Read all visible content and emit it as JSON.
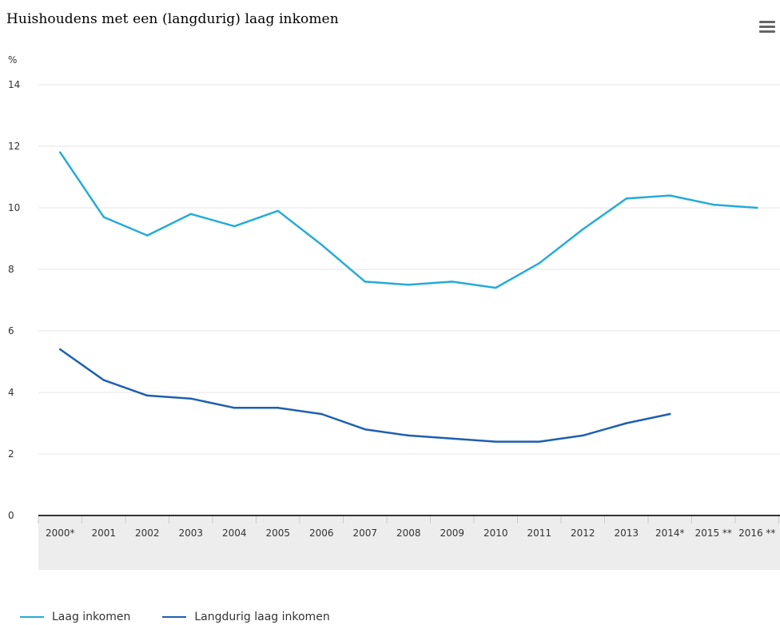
{
  "chart_data": {
    "type": "line",
    "title": "Huishoudens met een (langdurig) laag inkomen",
    "ylabel": "%",
    "xlabel": "",
    "ylim": [
      0,
      14
    ],
    "y_ticks": [
      "0",
      "2",
      "4",
      "6",
      "8",
      "10",
      "12",
      "14"
    ],
    "categories": [
      "2000*",
      "2001",
      "2002",
      "2003",
      "2004",
      "2005",
      "2006",
      "2007",
      "2008",
      "2009",
      "2010",
      "2011",
      "2012",
      "2013",
      "2014*",
      "2015 **",
      "2016 **"
    ],
    "grid": true,
    "legend_position": "bottom-left",
    "series": [
      {
        "name": "Laag inkomen",
        "color": "#25ABD9",
        "values": [
          11.8,
          9.7,
          9.1,
          9.8,
          9.4,
          9.9,
          8.8,
          7.6,
          7.5,
          7.6,
          7.4,
          8.2,
          9.3,
          10.3,
          10.4,
          10.1,
          10.0
        ]
      },
      {
        "name": "Langdurig laag inkomen",
        "color": "#1F5FB0",
        "values": [
          5.4,
          4.4,
          3.9,
          3.8,
          3.5,
          3.5,
          3.3,
          2.8,
          2.6,
          2.5,
          2.4,
          2.4,
          2.6,
          3.0,
          3.3,
          null,
          null
        ]
      }
    ]
  },
  "menu_icon": "hamburger-menu-icon",
  "colors": {
    "gridline": "#e6e6e6",
    "axis": "#333333",
    "category_band": "#ededed"
  }
}
